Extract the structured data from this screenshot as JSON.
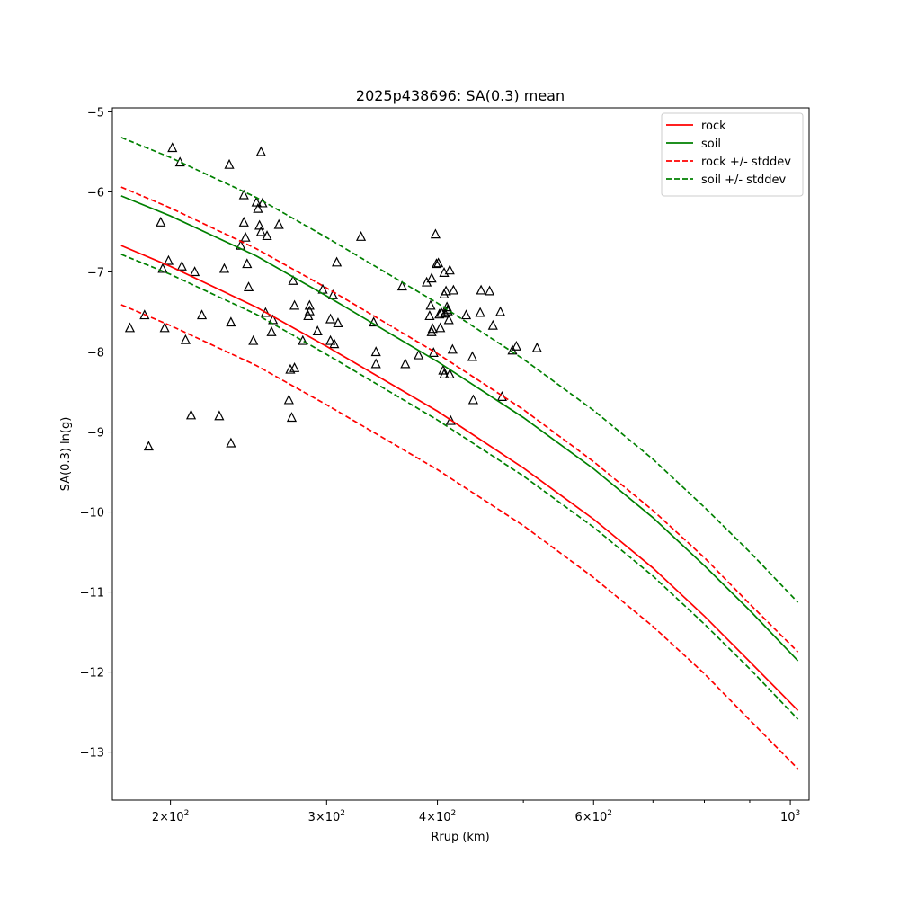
{
  "chart_data": {
    "type": "line",
    "title": "2025p438696: SA(0.3) mean",
    "xlabel": "Rrup (km)",
    "ylabel": "SA(0.3) ln(g)",
    "xscale": "log",
    "xlim": [
      172,
      1050
    ],
    "ylim": [
      -13.6,
      -4.95
    ],
    "x_ticks": [
      {
        "value": 200,
        "label_base": "2",
        "label_exp": "2"
      },
      {
        "value": 300,
        "label_base": "3",
        "label_exp": "2"
      },
      {
        "value": 400,
        "label_base": "4",
        "label_exp": "2"
      },
      {
        "value": 600,
        "label_base": "6",
        "label_exp": "2"
      },
      {
        "value": 1000,
        "label_base": "10",
        "label_exp": "3"
      }
    ],
    "x_minor_ticks": [
      500,
      700,
      800,
      900
    ],
    "y_ticks": [
      {
        "value": -5,
        "label": "−5"
      },
      {
        "value": -6,
        "label": "−6"
      },
      {
        "value": -7,
        "label": "−7"
      },
      {
        "value": -8,
        "label": "−8"
      },
      {
        "value": -9,
        "label": "−9"
      },
      {
        "value": -10,
        "label": "−10"
      },
      {
        "value": -11,
        "label": "−11"
      },
      {
        "value": -12,
        "label": "−12"
      },
      {
        "value": -13,
        "label": "−13"
      }
    ],
    "legend_position": "top-right",
    "series": [
      {
        "name": "rock",
        "color": "#ff0000",
        "style": "solid",
        "points": [
          [
            176,
            -6.67
          ],
          [
            200,
            -6.93
          ],
          [
            250,
            -7.44
          ],
          [
            300,
            -7.93
          ],
          [
            400,
            -8.74
          ],
          [
            500,
            -9.45
          ],
          [
            600,
            -10.09
          ],
          [
            700,
            -10.7
          ],
          [
            800,
            -11.3
          ],
          [
            900,
            -11.87
          ],
          [
            1020,
            -12.48
          ]
        ]
      },
      {
        "name": "soil",
        "color": "#008000",
        "style": "solid",
        "points": [
          [
            176,
            -6.05
          ],
          [
            200,
            -6.3
          ],
          [
            250,
            -6.8
          ],
          [
            300,
            -7.3
          ],
          [
            400,
            -8.12
          ],
          [
            500,
            -8.82
          ],
          [
            600,
            -9.46
          ],
          [
            700,
            -10.07
          ],
          [
            800,
            -10.67
          ],
          [
            900,
            -11.23
          ],
          [
            1020,
            -11.86
          ]
        ]
      },
      {
        "name": "rock +/- stddev",
        "color": "#ff0000",
        "style": "dashed",
        "points": [
          [
            176,
            -5.94
          ],
          [
            200,
            -6.2
          ],
          [
            250,
            -6.71
          ],
          [
            300,
            -7.2
          ],
          [
            400,
            -8.02
          ],
          [
            500,
            -8.72
          ],
          [
            600,
            -9.37
          ],
          [
            700,
            -9.98
          ],
          [
            800,
            -10.57
          ],
          [
            900,
            -11.15
          ],
          [
            1020,
            -11.75
          ]
        ]
      },
      {
        "color": "#ff0000",
        "style": "dashed",
        "points": [
          [
            176,
            -7.41
          ],
          [
            200,
            -7.67
          ],
          [
            250,
            -8.17
          ],
          [
            300,
            -8.66
          ],
          [
            400,
            -9.47
          ],
          [
            500,
            -10.17
          ],
          [
            600,
            -10.82
          ],
          [
            700,
            -11.43
          ],
          [
            800,
            -12.02
          ],
          [
            900,
            -12.6
          ],
          [
            1020,
            -13.21
          ]
        ]
      },
      {
        "name": "soil +/- stddev",
        "color": "#008000",
        "style": "dashed",
        "points": [
          [
            176,
            -5.32
          ],
          [
            200,
            -5.57
          ],
          [
            250,
            -6.07
          ],
          [
            300,
            -6.57
          ],
          [
            400,
            -7.39
          ],
          [
            500,
            -8.09
          ],
          [
            600,
            -8.73
          ],
          [
            700,
            -9.34
          ],
          [
            800,
            -9.94
          ],
          [
            900,
            -10.5
          ],
          [
            1020,
            -11.13
          ]
        ]
      },
      {
        "color": "#008000",
        "style": "dashed",
        "points": [
          [
            176,
            -6.78
          ],
          [
            200,
            -7.03
          ],
          [
            250,
            -7.53
          ],
          [
            300,
            -8.03
          ],
          [
            400,
            -8.85
          ],
          [
            500,
            -9.55
          ],
          [
            600,
            -10.19
          ],
          [
            700,
            -10.8
          ],
          [
            800,
            -11.4
          ],
          [
            900,
            -11.96
          ],
          [
            1020,
            -12.59
          ]
        ]
      }
    ],
    "observations": {
      "marker": "open-triangle",
      "color": "#000000",
      "points": [
        [
          180,
          -7.7
        ],
        [
          187,
          -7.54
        ],
        [
          189,
          -9.18
        ],
        [
          195,
          -6.38
        ],
        [
          196,
          -6.96
        ],
        [
          197,
          -7.7
        ],
        [
          199,
          -6.86
        ],
        [
          201,
          -5.45
        ],
        [
          205,
          -5.63
        ],
        [
          206,
          -6.93
        ],
        [
          208,
          -7.85
        ],
        [
          211,
          -8.79
        ],
        [
          213,
          -7.0
        ],
        [
          217,
          -7.54
        ],
        [
          227,
          -8.8
        ],
        [
          230,
          -6.96
        ],
        [
          233,
          -5.66
        ],
        [
          234,
          -7.63
        ],
        [
          234,
          -9.14
        ],
        [
          240,
          -6.67
        ],
        [
          242,
          -6.04
        ],
        [
          242,
          -6.38
        ],
        [
          243,
          -6.57
        ],
        [
          244,
          -6.9
        ],
        [
          245,
          -7.19
        ],
        [
          248,
          -7.86
        ],
        [
          250,
          -6.13
        ],
        [
          251,
          -6.21
        ],
        [
          252,
          -6.42
        ],
        [
          253,
          -6.5
        ],
        [
          253,
          -5.5
        ],
        [
          254,
          -6.14
        ],
        [
          256,
          -7.51
        ],
        [
          257,
          -6.55
        ],
        [
          260,
          -7.75
        ],
        [
          261,
          -7.6
        ],
        [
          265,
          -6.41
        ],
        [
          272,
          -8.6
        ],
        [
          273,
          -8.22
        ],
        [
          274,
          -8.82
        ],
        [
          275,
          -7.11
        ],
        [
          276,
          -7.42
        ],
        [
          276,
          -8.2
        ],
        [
          282,
          -7.86
        ],
        [
          286,
          -7.55
        ],
        [
          287,
          -7.42
        ],
        [
          287,
          -7.49
        ],
        [
          293,
          -7.74
        ],
        [
          297,
          -7.22
        ],
        [
          303,
          -7.59
        ],
        [
          303,
          -7.86
        ],
        [
          305,
          -7.29
        ],
        [
          306,
          -7.9
        ],
        [
          308,
          -6.88
        ],
        [
          309,
          -7.64
        ],
        [
          328,
          -6.56
        ],
        [
          339,
          -7.63
        ],
        [
          341,
          -8.0
        ],
        [
          341,
          -8.15
        ],
        [
          365,
          -7.18
        ],
        [
          368,
          -8.15
        ],
        [
          381,
          -8.04
        ],
        [
          389,
          -7.13
        ],
        [
          392,
          -7.55
        ],
        [
          393,
          -7.42
        ],
        [
          394,
          -7.08
        ],
        [
          394,
          -7.75
        ],
        [
          395,
          -7.71
        ],
        [
          396,
          -8.01
        ],
        [
          398,
          -6.53
        ],
        [
          399,
          -6.9
        ],
        [
          401,
          -6.89
        ],
        [
          402,
          -7.53
        ],
        [
          403,
          -7.7
        ],
        [
          404,
          -7.51
        ],
        [
          406,
          -8.23
        ],
        [
          407,
          -8.28
        ],
        [
          407,
          -7.01
        ],
        [
          407,
          -7.28
        ],
        [
          408,
          -7.52
        ],
        [
          409,
          -7.24
        ],
        [
          410,
          -7.44
        ],
        [
          411,
          -7.49
        ],
        [
          411,
          -7.47
        ],
        [
          412,
          -7.6
        ],
        [
          413,
          -6.98
        ],
        [
          413,
          -8.28
        ],
        [
          414,
          -8.86
        ],
        [
          416,
          -7.97
        ],
        [
          417,
          -7.23
        ],
        [
          431,
          -7.54
        ],
        [
          438,
          -8.06
        ],
        [
          439,
          -8.6
        ],
        [
          447,
          -7.51
        ],
        [
          448,
          -7.23
        ],
        [
          458,
          -7.24
        ],
        [
          462,
          -7.67
        ],
        [
          471,
          -7.5
        ],
        [
          473,
          -8.56
        ],
        [
          486,
          -7.98
        ],
        [
          491,
          -7.93
        ],
        [
          518,
          -7.95
        ]
      ]
    }
  }
}
